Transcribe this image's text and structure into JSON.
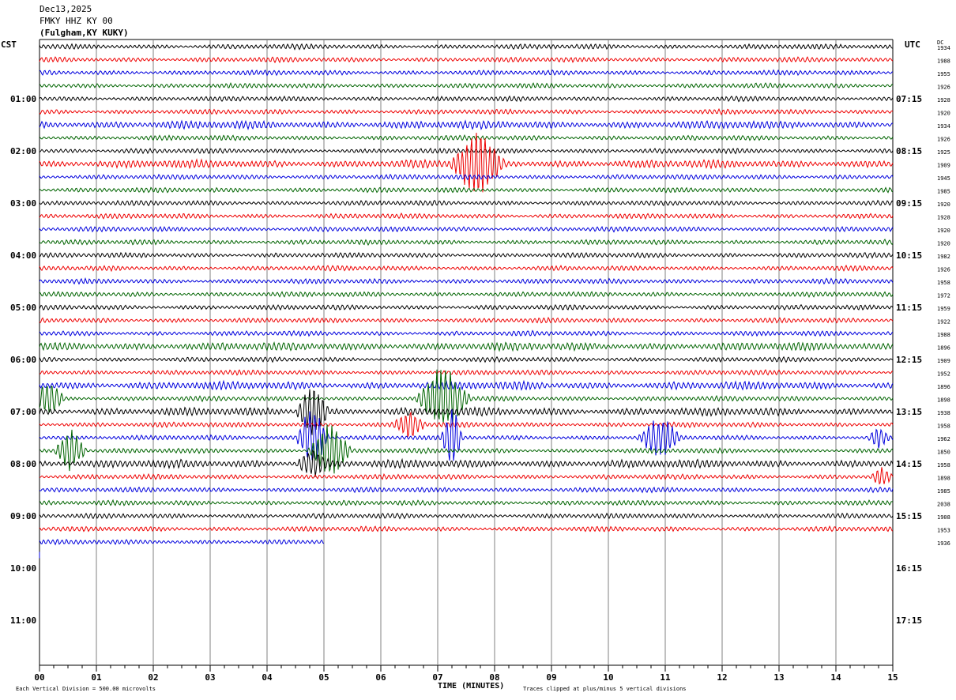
{
  "header": {
    "date": "Dec13,2025",
    "station": "FMKY HHZ KY 00",
    "location": "(Fulgham,KY KUKY)"
  },
  "left_timezone": "CST",
  "right_timezone": "UTC",
  "right_column_header": "DC",
  "colors": {
    "trace_cycle": [
      "#000000",
      "#ee0000",
      "#0000dd",
      "#006400"
    ],
    "grid": "#808080"
  },
  "chart_data": {
    "type": "helicorder",
    "xlabel": "TIME (MINUTES)",
    "x_ticks": [
      "00",
      "01",
      "02",
      "03",
      "04",
      "05",
      "06",
      "07",
      "08",
      "09",
      "10",
      "11",
      "12",
      "13",
      "14",
      "15"
    ],
    "xlim": [
      0,
      15
    ],
    "rows_per_hour": 4,
    "total_rows": 48,
    "recorded_rows": 39,
    "last_row_end_minute": 5,
    "left_hour_labels": [
      "01:00",
      "02:00",
      "03:00",
      "04:00",
      "05:00",
      "06:00",
      "07:00",
      "08:00",
      "09:00",
      "10:00",
      "11:00"
    ],
    "right_hour_labels": [
      "07:15",
      "08:15",
      "09:15",
      "10:15",
      "11:15",
      "12:15",
      "13:15",
      "14:15",
      "15:15",
      "16:15",
      "17:15"
    ],
    "dc_offsets": [
      "1934",
      "1988",
      "1955",
      "1926",
      "1928",
      "1920",
      "1934",
      "1926",
      "1925",
      "1909",
      "1945",
      "1985",
      "1920",
      "1928",
      "1920",
      "1920",
      "1982",
      "1926",
      "1958",
      "1972",
      "1959",
      "1922",
      "1988",
      "1896",
      "1909",
      "1952",
      "1896",
      "1898",
      "1938",
      "1958",
      "1962",
      "1850",
      "1958",
      "1898",
      "1985",
      "2038",
      "1908",
      "1953",
      "1936"
    ],
    "events": [
      {
        "row": 9,
        "minute": 7.7,
        "amplitude": 5,
        "duration": 0.5
      },
      {
        "row": 27,
        "minute": 0.15,
        "amplitude": 2.5,
        "duration": 0.3
      },
      {
        "row": 27,
        "minute": 7.1,
        "amplitude": 5,
        "duration": 0.5
      },
      {
        "row": 28,
        "minute": 4.8,
        "amplitude": 4,
        "duration": 0.3
      },
      {
        "row": 29,
        "minute": 6.5,
        "amplitude": 2,
        "duration": 0.3
      },
      {
        "row": 30,
        "minute": 4.8,
        "amplitude": 5,
        "duration": 0.3
      },
      {
        "row": 30,
        "minute": 7.25,
        "amplitude": 5,
        "duration": 0.2
      },
      {
        "row": 30,
        "minute": 10.9,
        "amplitude": 3,
        "duration": 0.4
      },
      {
        "row": 30,
        "minute": 14.75,
        "amplitude": 1.5,
        "duration": 0.2
      },
      {
        "row": 31,
        "minute": 0.55,
        "amplitude": 3,
        "duration": 0.3
      },
      {
        "row": 31,
        "minute": 5.1,
        "amplitude": 4,
        "duration": 0.4
      },
      {
        "row": 32,
        "minute": 4.8,
        "amplitude": 2,
        "duration": 0.3
      },
      {
        "row": 33,
        "minute": 14.8,
        "amplitude": 1.2,
        "duration": 0.2
      }
    ],
    "noisy_rows": [
      6,
      9,
      23,
      26,
      28,
      32
    ]
  },
  "footer": {
    "scale_note": "Each Vertical Division =  500.00 microvolts",
    "clip_note": "Traces clipped at plus/minus 5 vertical divisions"
  }
}
